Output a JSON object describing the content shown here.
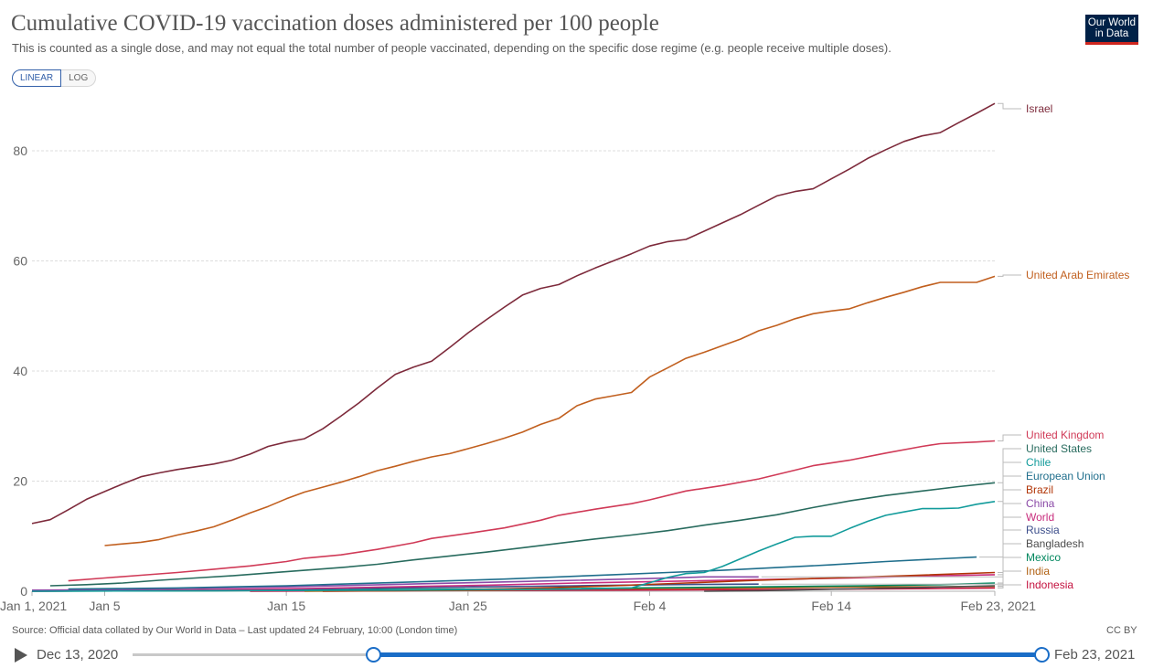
{
  "title": "Cumulative COVID-19 vaccination doses administered per 100 people",
  "subtitle": "This is counted as a single dose, and may not equal the total number of people vaccinated, depending on the specific dose regime (e.g. people receive multiple doses).",
  "logo": {
    "line1": "Our World",
    "line2": "in Data",
    "colors": {
      "background": "#002147",
      "accent": "#ce261e"
    }
  },
  "scale_toggle": {
    "linear": "LINEAR",
    "log": "LOG",
    "selected": "LINEAR"
  },
  "source": "Source: Official data collated by Our World in Data – Last updated 24 February, 10:00 (London time)",
  "license": "CC BY",
  "timeline": {
    "start": "Dec 13, 2020",
    "end": "Feb 23, 2021",
    "play_icon": "play-icon",
    "range_start": "Jan 1, 2021",
    "range_end": "Feb 23, 2021"
  },
  "chart_data": {
    "type": "line",
    "title": "Cumulative COVID-19 vaccination doses administered per 100 people",
    "xlabel": "",
    "ylabel": "",
    "x_ticks": [
      {
        "day": 0,
        "label": "Jan 1, 2021"
      },
      {
        "day": 4,
        "label": "Jan 5"
      },
      {
        "day": 14,
        "label": "Jan 15"
      },
      {
        "day": 24,
        "label": "Jan 25"
      },
      {
        "day": 34,
        "label": "Feb 4"
      },
      {
        "day": 44,
        "label": "Feb 14"
      },
      {
        "day": 53,
        "label": "Feb 23, 2021"
      }
    ],
    "y_ticks": [
      0,
      20,
      40,
      60,
      80
    ],
    "xlim": [
      0,
      53
    ],
    "ylim": [
      0,
      88
    ],
    "grid": "horizontal dashed",
    "legend": "right-side line labels",
    "series": [
      {
        "name": "Israel",
        "color": "#7d2a3b",
        "points": [
          [
            0,
            12.3
          ],
          [
            1,
            13
          ],
          [
            2,
            14.8
          ],
          [
            3,
            16.7
          ],
          [
            4,
            18.1
          ],
          [
            5,
            19.5
          ],
          [
            6,
            20.8
          ],
          [
            7,
            21.5
          ],
          [
            8,
            22.1
          ],
          [
            9,
            22.6
          ],
          [
            10,
            23.1
          ],
          [
            11,
            23.8
          ],
          [
            12,
            24.9
          ],
          [
            13,
            26.3
          ],
          [
            14,
            27.1
          ],
          [
            15,
            27.7
          ],
          [
            16,
            29.5
          ],
          [
            17,
            31.8
          ],
          [
            18,
            34.2
          ],
          [
            19,
            36.9
          ],
          [
            20,
            39.4
          ],
          [
            21,
            40.7
          ],
          [
            22,
            41.8
          ],
          [
            23,
            44.3
          ],
          [
            24,
            46.9
          ],
          [
            25,
            49.3
          ],
          [
            26,
            51.6
          ],
          [
            27,
            53.8
          ],
          [
            28,
            55
          ],
          [
            29,
            55.7
          ],
          [
            30,
            57.3
          ],
          [
            31,
            58.7
          ],
          [
            32,
            60
          ],
          [
            33,
            61.3
          ],
          [
            34,
            62.7
          ],
          [
            35,
            63.5
          ],
          [
            36,
            63.9
          ],
          [
            37,
            65.4
          ],
          [
            38,
            66.9
          ],
          [
            39,
            68.4
          ],
          [
            40,
            70.1
          ],
          [
            41,
            71.8
          ],
          [
            42,
            72.6
          ],
          [
            43,
            73.1
          ],
          [
            44,
            74.9
          ],
          [
            45,
            76.7
          ],
          [
            46,
            78.6
          ],
          [
            47,
            80.2
          ],
          [
            48,
            81.7
          ],
          [
            49,
            82.7
          ],
          [
            50,
            83.3
          ],
          [
            51,
            85.1
          ],
          [
            52,
            86.8
          ],
          [
            53,
            88.6
          ]
        ]
      },
      {
        "name": "United Arab Emirates",
        "color": "#c15f1e",
        "points": [
          [
            4,
            8.3
          ],
          [
            5,
            8.6
          ],
          [
            6,
            8.9
          ],
          [
            7,
            9.4
          ],
          [
            8,
            10.2
          ],
          [
            9,
            10.9
          ],
          [
            10,
            11.7
          ],
          [
            11,
            12.9
          ],
          [
            12,
            14.2
          ],
          [
            13,
            15.4
          ],
          [
            14,
            16.8
          ],
          [
            15,
            18
          ],
          [
            16,
            18.9
          ],
          [
            17,
            19.8
          ],
          [
            18,
            20.8
          ],
          [
            19,
            21.9
          ],
          [
            20,
            22.7
          ],
          [
            21,
            23.6
          ],
          [
            22,
            24.4
          ],
          [
            23,
            25
          ],
          [
            24,
            25.9
          ],
          [
            25,
            26.8
          ],
          [
            26,
            27.8
          ],
          [
            27,
            28.9
          ],
          [
            28,
            30.3
          ],
          [
            29,
            31.4
          ],
          [
            30,
            33.7
          ],
          [
            31,
            34.9
          ],
          [
            32,
            35.5
          ],
          [
            33,
            36.1
          ],
          [
            34,
            38.9
          ],
          [
            35,
            40.6
          ],
          [
            36,
            42.3
          ],
          [
            37,
            43.4
          ],
          [
            38,
            44.6
          ],
          [
            39,
            45.8
          ],
          [
            40,
            47.3
          ],
          [
            41,
            48.3
          ],
          [
            42,
            49.5
          ],
          [
            43,
            50.4
          ],
          [
            44,
            50.9
          ],
          [
            45,
            51.3
          ],
          [
            46,
            52.4
          ],
          [
            47,
            53.4
          ],
          [
            48,
            54.3
          ],
          [
            49,
            55.3
          ],
          [
            50,
            56.1
          ],
          [
            51,
            56.1
          ],
          [
            52,
            56.1
          ],
          [
            53,
            57.2
          ]
        ]
      },
      {
        "name": "United Kingdom",
        "color": "#d03a57",
        "points": [
          [
            2,
            1.9
          ],
          [
            4,
            2.4
          ],
          [
            6,
            2.9
          ],
          [
            8,
            3.4
          ],
          [
            10,
            4
          ],
          [
            12,
            4.6
          ],
          [
            14,
            5.4
          ],
          [
            15,
            6
          ],
          [
            17,
            6.6
          ],
          [
            19,
            7.6
          ],
          [
            21,
            8.8
          ],
          [
            22,
            9.6
          ],
          [
            24,
            10.5
          ],
          [
            26,
            11.5
          ],
          [
            28,
            12.9
          ],
          [
            29,
            13.8
          ],
          [
            31,
            14.9
          ],
          [
            33,
            15.9
          ],
          [
            34,
            16.6
          ],
          [
            36,
            18.2
          ],
          [
            38,
            19.2
          ],
          [
            40,
            20.4
          ],
          [
            42,
            22
          ],
          [
            43,
            22.8
          ],
          [
            45,
            23.8
          ],
          [
            47,
            25.1
          ],
          [
            49,
            26.3
          ],
          [
            50,
            26.8
          ],
          [
            52,
            27.1
          ],
          [
            53,
            27.3
          ]
        ]
      },
      {
        "name": "United States",
        "color": "#286b5e",
        "points": [
          [
            1,
            1
          ],
          [
            3,
            1.2
          ],
          [
            5,
            1.5
          ],
          [
            7,
            2
          ],
          [
            9,
            2.4
          ],
          [
            11,
            2.8
          ],
          [
            13,
            3.3
          ],
          [
            15,
            3.8
          ],
          [
            17,
            4.3
          ],
          [
            19,
            4.9
          ],
          [
            21,
            5.7
          ],
          [
            23,
            6.4
          ],
          [
            25,
            7.1
          ],
          [
            27,
            7.9
          ],
          [
            29,
            8.7
          ],
          [
            31,
            9.5
          ],
          [
            33,
            10.2
          ],
          [
            35,
            11
          ],
          [
            37,
            12
          ],
          [
            39,
            12.9
          ],
          [
            41,
            13.9
          ],
          [
            43,
            15.2
          ],
          [
            45,
            16.4
          ],
          [
            47,
            17.4
          ],
          [
            49,
            18.2
          ],
          [
            51,
            19
          ],
          [
            53,
            19.7
          ]
        ]
      },
      {
        "name": "Chile",
        "color": "#129b9b",
        "points": [
          [
            0,
            0
          ],
          [
            20,
            0.2
          ],
          [
            30,
            0.4
          ],
          [
            33,
            0.6
          ],
          [
            35,
            2.5
          ],
          [
            36,
            3.2
          ],
          [
            37,
            3.4
          ],
          [
            38,
            4.5
          ],
          [
            39,
            5.9
          ],
          [
            40,
            7.3
          ],
          [
            41,
            8.6
          ],
          [
            42,
            9.8
          ],
          [
            43,
            10
          ],
          [
            44,
            10
          ],
          [
            45,
            11.4
          ],
          [
            46,
            12.7
          ],
          [
            47,
            13.8
          ],
          [
            48,
            14.4
          ],
          [
            49,
            15
          ],
          [
            50,
            15
          ],
          [
            51,
            15.1
          ],
          [
            52,
            15.8
          ],
          [
            53,
            16.3
          ]
        ]
      },
      {
        "name": "European Union",
        "color": "#1f6e8c",
        "points": [
          [
            2,
            0.4
          ],
          [
            5,
            0.5
          ],
          [
            8,
            0.6
          ],
          [
            11,
            0.8
          ],
          [
            14,
            1
          ],
          [
            17,
            1.3
          ],
          [
            20,
            1.6
          ],
          [
            23,
            1.9
          ],
          [
            26,
            2.2
          ],
          [
            29,
            2.6
          ],
          [
            32,
            3
          ],
          [
            35,
            3.4
          ],
          [
            38,
            3.8
          ],
          [
            41,
            4.3
          ],
          [
            44,
            4.8
          ],
          [
            47,
            5.4
          ],
          [
            50,
            5.9
          ],
          [
            52,
            6.2
          ]
        ]
      },
      {
        "name": "Brazil",
        "color": "#b13507",
        "points": [
          [
            16,
            0
          ],
          [
            20,
            0.1
          ],
          [
            24,
            0.3
          ],
          [
            28,
            0.6
          ],
          [
            32,
            1
          ],
          [
            36,
            1.5
          ],
          [
            40,
            2
          ],
          [
            44,
            2.4
          ],
          [
            48,
            2.8
          ],
          [
            53,
            3.4
          ]
        ]
      },
      {
        "name": "China",
        "color": "#8b4aa7",
        "points": [
          [
            0,
            0.2
          ],
          [
            5,
            0.3
          ],
          [
            10,
            0.6
          ],
          [
            14,
            0.8
          ],
          [
            18,
            1.1
          ],
          [
            22,
            1.4
          ],
          [
            26,
            1.7
          ],
          [
            30,
            2
          ],
          [
            34,
            2.3
          ],
          [
            37,
            2.6
          ],
          [
            40,
            2.6
          ]
        ]
      },
      {
        "name": "World",
        "color": "#c82d7d",
        "points": [
          [
            0,
            0
          ],
          [
            5,
            0.1
          ],
          [
            10,
            0.3
          ],
          [
            15,
            0.5
          ],
          [
            20,
            0.8
          ],
          [
            25,
            1.1
          ],
          [
            30,
            1.5
          ],
          [
            35,
            1.8
          ],
          [
            40,
            2.1
          ],
          [
            45,
            2.4
          ],
          [
            50,
            2.8
          ],
          [
            53,
            3
          ]
        ]
      },
      {
        "name": "Russia",
        "color": "#3c4e8b",
        "points": [
          [
            0,
            0
          ],
          [
            10,
            0.2
          ],
          [
            15,
            0.4
          ],
          [
            20,
            0.6
          ],
          [
            25,
            0.8
          ],
          [
            30,
            1
          ],
          [
            35,
            1.2
          ],
          [
            40,
            1.3
          ]
        ]
      },
      {
        "name": "Bangladesh",
        "color": "#4c4c4c",
        "points": [
          [
            37,
            0
          ],
          [
            40,
            0.1
          ],
          [
            43,
            0.3
          ],
          [
            46,
            0.5
          ],
          [
            49,
            0.7
          ],
          [
            53,
            1
          ]
        ]
      },
      {
        "name": "Mexico",
        "color": "#00875e",
        "points": [
          [
            0,
            0
          ],
          [
            10,
            0.1
          ],
          [
            20,
            0.3
          ],
          [
            30,
            0.5
          ],
          [
            40,
            0.8
          ],
          [
            46,
            1
          ],
          [
            50,
            1.2
          ],
          [
            53,
            1.5
          ]
        ]
      },
      {
        "name": "India",
        "color": "#b16214",
        "points": [
          [
            15,
            0
          ],
          [
            20,
            0.1
          ],
          [
            25,
            0.2
          ],
          [
            30,
            0.4
          ],
          [
            35,
            0.5
          ],
          [
            40,
            0.6
          ],
          [
            45,
            0.8
          ],
          [
            50,
            0.8
          ],
          [
            53,
            0.9
          ]
        ]
      },
      {
        "name": "Indonesia",
        "color": "#c4123f",
        "points": [
          [
            12,
            0
          ],
          [
            20,
            0.1
          ],
          [
            30,
            0.2
          ],
          [
            40,
            0.3
          ],
          [
            45,
            0.4
          ],
          [
            50,
            0.5
          ],
          [
            53,
            0.6
          ]
        ]
      }
    ]
  }
}
